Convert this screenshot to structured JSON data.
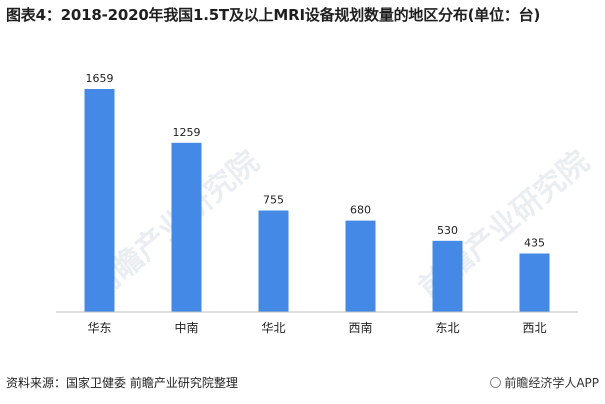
{
  "title": "图表4：2018-2020年我国1.5T及以上MRI设备规划数量的地区分布(单位：台)",
  "source": "资料来源：国家卫健委 前瞻产业研究院整理",
  "brand": "前瞻经济学人APP",
  "watermark": "前瞻产业研究院",
  "colors": {
    "bar": "#4589e6",
    "axis": "#bfbfbf"
  },
  "chart_data": {
    "type": "bar",
    "categories": [
      "华东",
      "中南",
      "华北",
      "西南",
      "东北",
      "西北"
    ],
    "values": [
      1659,
      1259,
      755,
      680,
      530,
      435
    ],
    "title": "图表4：2018-2020年我国1.5T及以上MRI设备规划数量的地区分布(单位：台)",
    "xlabel": "",
    "ylabel": "",
    "ylim": [
      0,
      1800
    ],
    "grid": false,
    "legend": "none"
  }
}
